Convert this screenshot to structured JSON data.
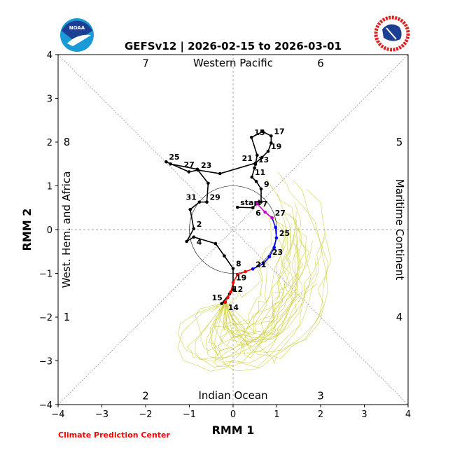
{
  "chart_data": {
    "type": "line",
    "title": "GEFSv12 | 2026-02-15 to 2026-03-01",
    "xlabel": "RMM 1",
    "ylabel": "RMM 2",
    "xlim": [
      -4,
      4
    ],
    "ylim": [
      -4,
      4
    ],
    "xticks": [
      -4,
      -3,
      -2,
      -1,
      0,
      1,
      2,
      3,
      4
    ],
    "yticks": [
      -4,
      -3,
      -2,
      -1,
      0,
      1,
      2,
      3,
      4
    ],
    "grid": false,
    "phase_labels": [
      {
        "label": "1",
        "x": -3.8,
        "y": -2
      },
      {
        "label": "2",
        "x": -2,
        "y": -3.8
      },
      {
        "label": "3",
        "x": 2,
        "y": -3.8
      },
      {
        "label": "4",
        "x": 3.8,
        "y": -2
      },
      {
        "label": "5",
        "x": 3.8,
        "y": 2
      },
      {
        "label": "6",
        "x": 2,
        "y": 3.8
      },
      {
        "label": "7",
        "x": -2,
        "y": 3.8
      },
      {
        "label": "8",
        "x": -3.8,
        "y": 2
      }
    ],
    "region_labels": {
      "top": "Western Pacific",
      "bottom": "Indian Ocean",
      "left": "West. Hem. and Africa",
      "right": "Maritime Continent"
    },
    "observed": {
      "color": "#000000",
      "points": [
        {
          "x": 0.1,
          "y": 0.51,
          "label": "start"
        },
        {
          "x": 0.45,
          "y": 0.5,
          "label": "6"
        },
        {
          "x": 0.54,
          "y": 0.59,
          "label": "7"
        },
        {
          "x": 0.64,
          "y": 0.63,
          "label": ""
        },
        {
          "x": 0.64,
          "y": 0.93,
          "label": "9"
        },
        {
          "x": 0.53,
          "y": 1.1,
          "label": ""
        },
        {
          "x": 0.43,
          "y": 1.2,
          "label": "11"
        },
        {
          "x": 0.49,
          "y": 1.41,
          "label": ""
        },
        {
          "x": 0.51,
          "y": 1.49,
          "label": "13"
        },
        {
          "x": 0.55,
          "y": 1.7,
          "label": ""
        },
        {
          "x": 0.42,
          "y": 2.11,
          "label": "15"
        },
        {
          "x": 0.68,
          "y": 2.24,
          "label": ""
        },
        {
          "x": 0.87,
          "y": 2.14,
          "label": "17"
        },
        {
          "x": 0.87,
          "y": 1.98,
          "label": ""
        },
        {
          "x": 0.8,
          "y": 1.79,
          "label": "19"
        },
        {
          "x": 0.66,
          "y": 1.65,
          "label": ""
        },
        {
          "x": 0.51,
          "y": 1.52,
          "label": "21"
        },
        {
          "x": -0.3,
          "y": 1.28,
          "label": ""
        },
        {
          "x": -0.8,
          "y": 1.36,
          "label": "23"
        },
        {
          "x": -1.01,
          "y": 1.32,
          "label": ""
        },
        {
          "x": -1.53,
          "y": 1.55,
          "label": "25"
        },
        {
          "x": -1.43,
          "y": 1.5,
          "label": ""
        },
        {
          "x": -0.82,
          "y": 1.38,
          "label": "27"
        },
        {
          "x": -0.57,
          "y": 1.06,
          "label": ""
        },
        {
          "x": -0.6,
          "y": 0.63,
          "label": "29"
        },
        {
          "x": -0.77,
          "y": 0.63,
          "label": "31"
        },
        {
          "x": -0.98,
          "y": 0.46,
          "label": ""
        },
        {
          "x": -0.9,
          "y": 0.02,
          "label": "2"
        },
        {
          "x": -1.06,
          "y": -0.27,
          "label": ""
        },
        {
          "x": -0.9,
          "y": -0.17,
          "label": "4"
        },
        {
          "x": -0.4,
          "y": -0.32,
          "label": ""
        },
        {
          "x": -0.2,
          "y": -0.6,
          "label": ""
        },
        {
          "x": 0.0,
          "y": -0.89,
          "label": "8"
        },
        {
          "x": 0.0,
          "y": -1.37,
          "label": ""
        },
        {
          "x": -0.08,
          "y": -1.47,
          "label": "12"
        },
        {
          "x": -0.26,
          "y": -1.69,
          "label": ""
        },
        {
          "x": -0.18,
          "y": -1.66,
          "label": "14"
        }
      ]
    },
    "forecast": [
      {
        "color": "#ff0000",
        "points": [
          {
            "x": -0.18,
            "y": -1.66,
            "label": "15"
          },
          {
            "x": -0.12,
            "y": -1.55,
            "label": ""
          },
          {
            "x": -0.05,
            "y": -1.42,
            "label": ""
          },
          {
            "x": 0.0,
            "y": -1.21,
            "label": "19"
          },
          {
            "x": 0.1,
            "y": -1.03,
            "label": ""
          },
          {
            "x": 0.28,
            "y": -0.96,
            "label": ""
          },
          {
            "x": 0.45,
            "y": -0.9,
            "label": "21"
          }
        ]
      },
      {
        "color": "#0000ff",
        "points": [
          {
            "x": 0.45,
            "y": -0.9,
            "label": ""
          },
          {
            "x": 0.69,
            "y": -0.78,
            "label": ""
          },
          {
            "x": 0.83,
            "y": -0.62,
            "label": "23"
          },
          {
            "x": 0.94,
            "y": -0.41,
            "label": ""
          },
          {
            "x": 0.99,
            "y": -0.19,
            "label": "25"
          },
          {
            "x": 0.97,
            "y": 0.05,
            "label": ""
          },
          {
            "x": 0.89,
            "y": 0.27,
            "label": "27"
          }
        ]
      },
      {
        "color": "#cc00cc",
        "points": [
          {
            "x": 0.89,
            "y": 0.27,
            "label": ""
          },
          {
            "x": 0.73,
            "y": 0.4,
            "label": ""
          },
          {
            "x": 0.54,
            "y": 0.6,
            "label": ""
          }
        ]
      }
    ],
    "ensemble_color": "#cccc33"
  },
  "credit": "Climate Prediction Center",
  "logos": {
    "left": "NOAA",
    "right": "NATIONAL WEATHER SERVICE"
  }
}
